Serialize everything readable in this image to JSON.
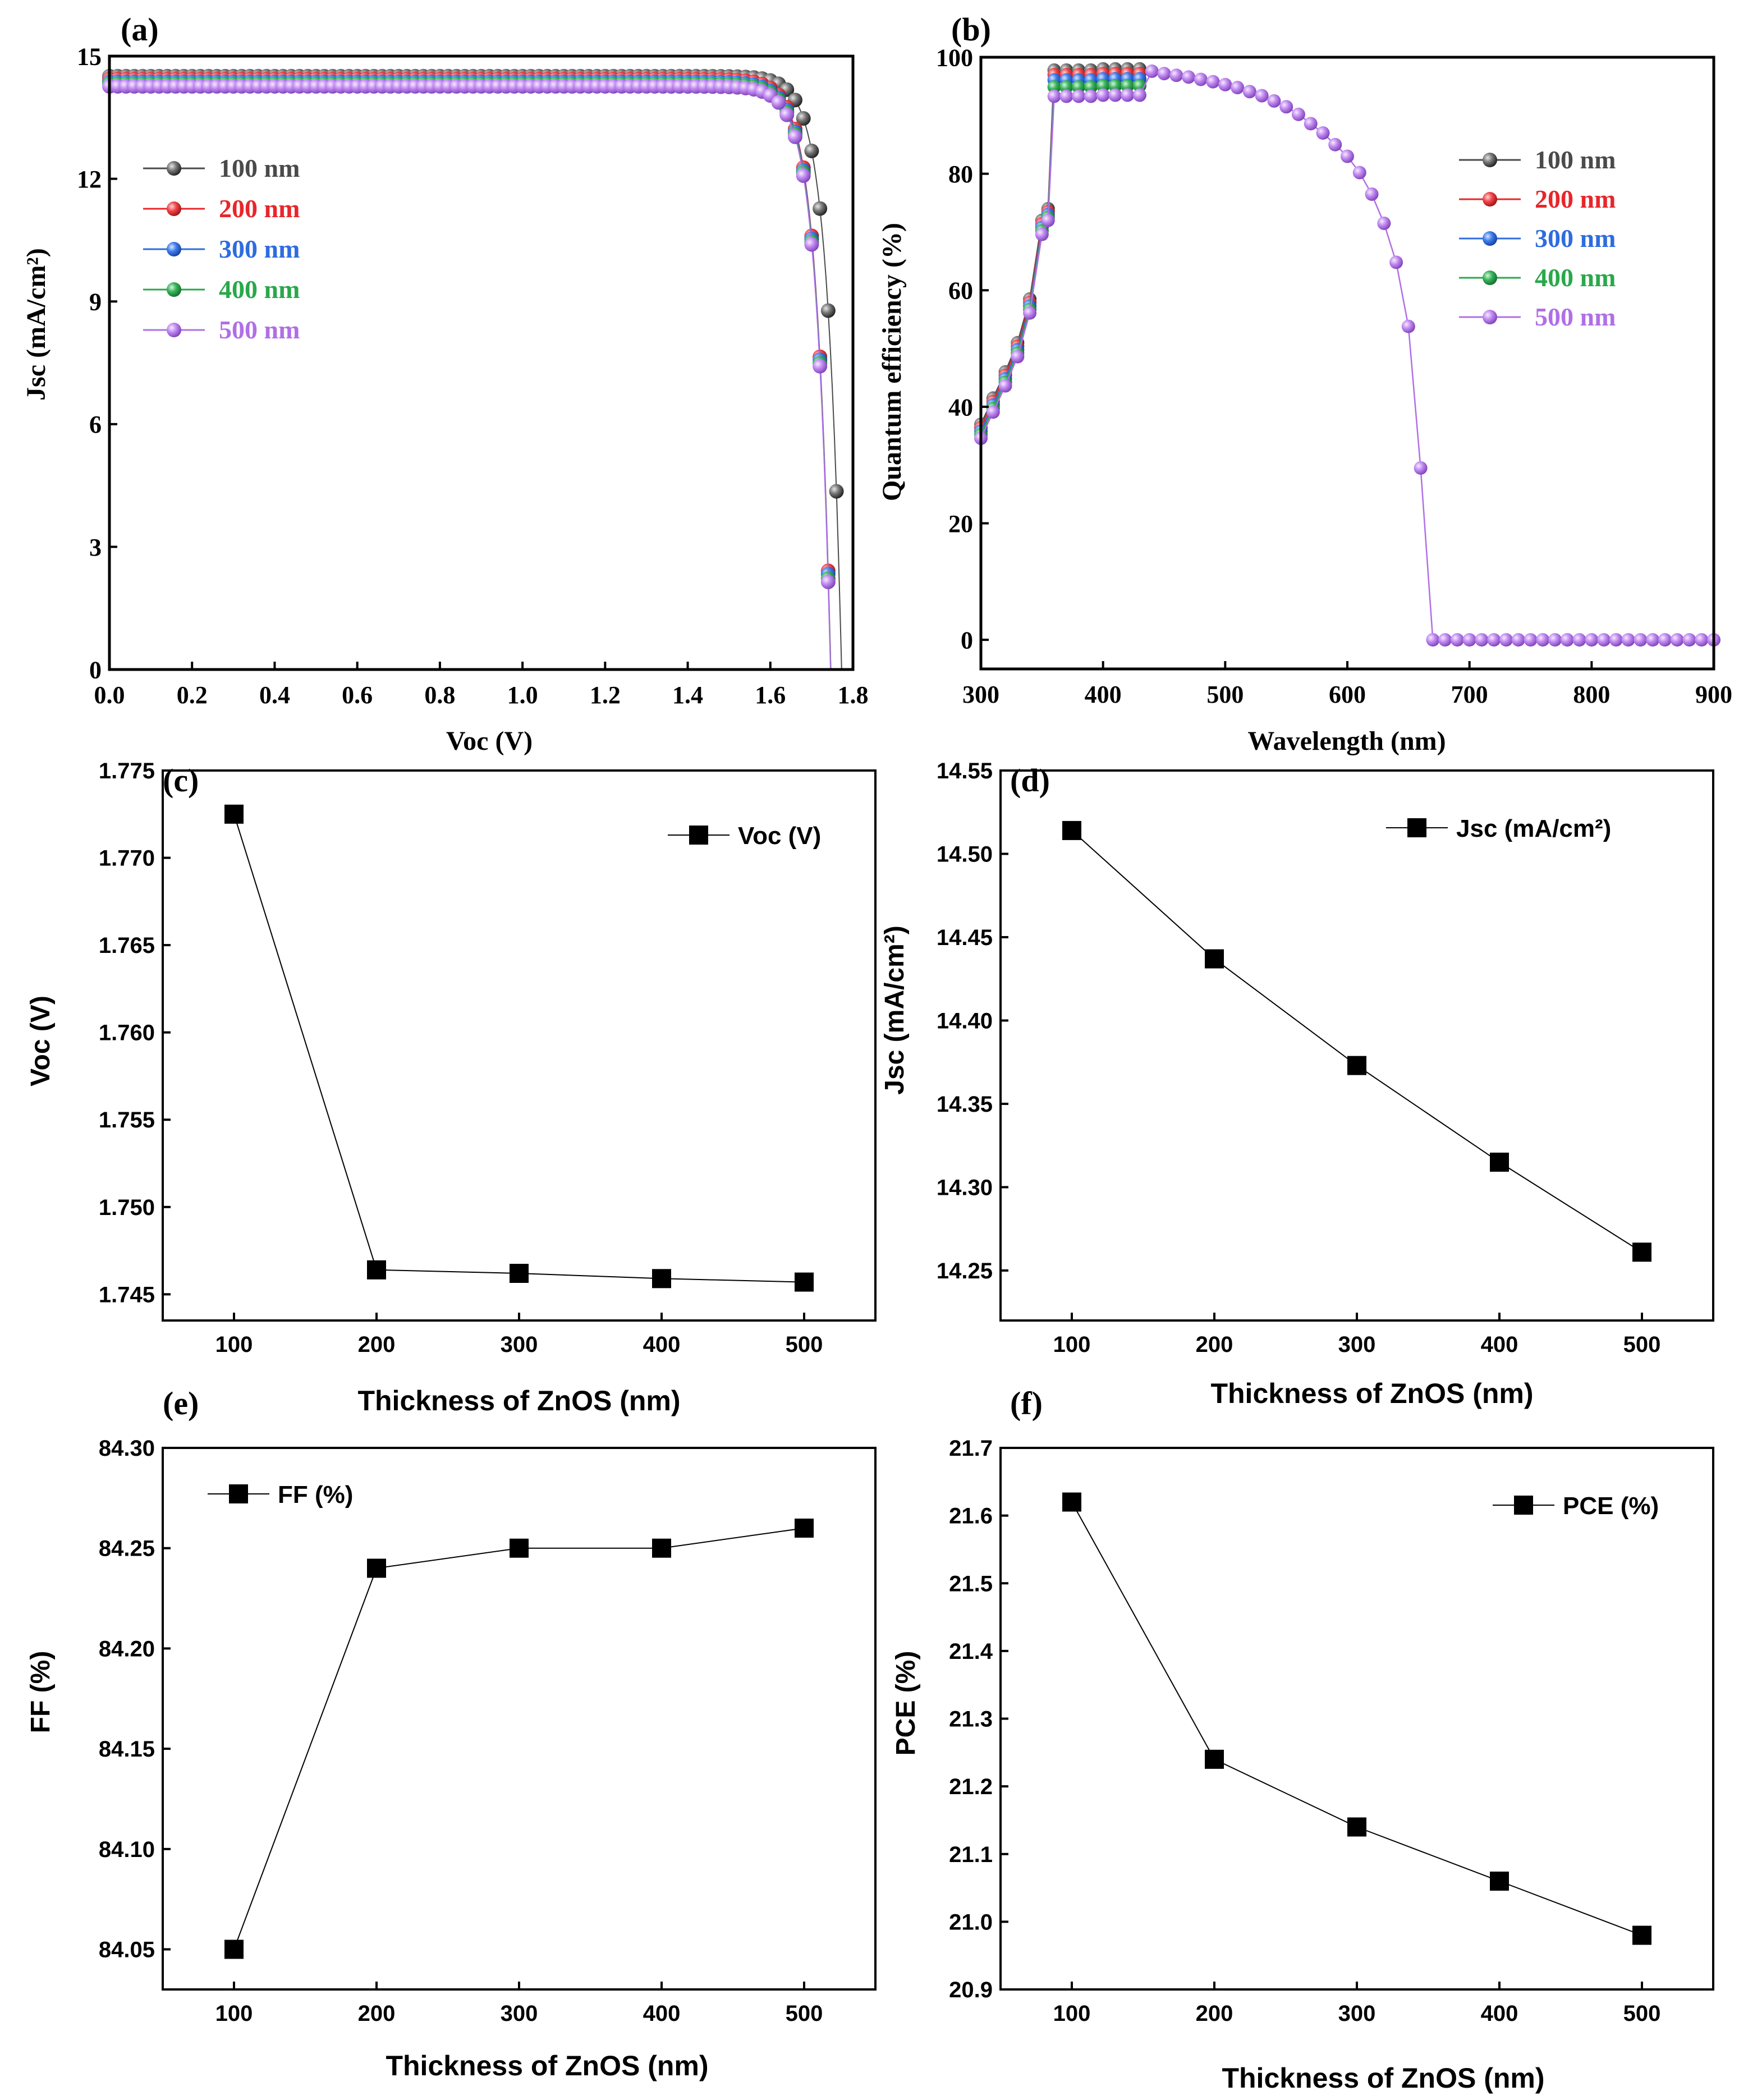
{
  "chart_data": [
    {
      "id": "a",
      "panel_label": "(a)",
      "type": "scatter",
      "title": "",
      "xlabel": "Voc (V)",
      "ylabel": "Jsc (mA/cm²)",
      "xlim": [
        0,
        1.8
      ],
      "ylim": [
        0,
        15
      ],
      "xticks": [
        0.0,
        0.2,
        0.4,
        0.6,
        0.8,
        1.0,
        1.2,
        1.4,
        1.6,
        1.8
      ],
      "xtick_labels": [
        "0.0",
        "0.2",
        "0.4",
        "0.6",
        "0.8",
        "1.0",
        "1.2",
        "1.4",
        "1.6",
        "1.8"
      ],
      "yticks": [
        0,
        3,
        6,
        9,
        12,
        15
      ],
      "ytick_labels": [
        "0",
        "3",
        "6",
        "9",
        "12",
        "15"
      ],
      "legend_position": "left",
      "series": [
        {
          "name": "100 nm",
          "color": "#4a4a4a",
          "jsc": 14.51,
          "voc": 1.7725
        },
        {
          "name": "200 nm",
          "color": "#e8262b",
          "jsc": 14.44,
          "voc": 1.7464
        },
        {
          "name": "300 nm",
          "color": "#2e6cdf",
          "jsc": 14.37,
          "voc": 1.7462
        },
        {
          "name": "400 nm",
          "color": "#2aa84a",
          "jsc": 14.32,
          "voc": 1.7459
        },
        {
          "name": "500 nm",
          "color": "#b06fe6",
          "jsc": 14.26,
          "voc": 1.7457
        }
      ]
    },
    {
      "id": "b",
      "panel_label": "(b)",
      "type": "scatter",
      "title": "",
      "xlabel": "Wavelength (nm)",
      "ylabel": "Quantum efficiency (%)",
      "xlim": [
        300,
        900
      ],
      "ylim": [
        -5,
        100
      ],
      "xticks": [
        300,
        400,
        500,
        600,
        700,
        800,
        900
      ],
      "xtick_labels": [
        "300",
        "400",
        "500",
        "600",
        "700",
        "800",
        "900"
      ],
      "yticks": [
        0,
        20,
        40,
        60,
        80,
        100
      ],
      "ytick_labels": [
        "0",
        "20",
        "40",
        "60",
        "80",
        "100"
      ],
      "legend_position": "right",
      "series": [
        {
          "name": "100 nm",
          "color": "#4a4a4a",
          "plateau": 98.0
        },
        {
          "name": "200 nm",
          "color": "#e8262b",
          "plateau": 97.2
        },
        {
          "name": "300 nm",
          "color": "#2e6cdf",
          "plateau": 96.3
        },
        {
          "name": "400 nm",
          "color": "#2aa84a",
          "plateau": 95.1
        },
        {
          "name": "500 nm",
          "color": "#b06fe6",
          "plateau": 93.5
        }
      ],
      "steps": [
        [
          300,
          37
        ],
        [
          310,
          41.5
        ],
        [
          320,
          46
        ],
        [
          330,
          51
        ],
        [
          340,
          58.5
        ],
        [
          350,
          72
        ]
      ],
      "tail": [
        [
          440,
          97.6
        ],
        [
          450,
          97.2
        ],
        [
          460,
          96.9
        ],
        [
          470,
          96.6
        ],
        [
          480,
          96.2
        ],
        [
          490,
          95.8
        ],
        [
          500,
          95.3
        ],
        [
          510,
          94.8
        ],
        [
          520,
          94.1
        ],
        [
          530,
          93.4
        ],
        [
          540,
          92.5
        ],
        [
          550,
          91.5
        ],
        [
          560,
          90.2
        ],
        [
          570,
          88.6
        ],
        [
          580,
          87.0
        ],
        [
          590,
          85.0
        ],
        [
          600,
          83.0
        ],
        [
          610,
          80.2
        ],
        [
          620,
          76.5
        ],
        [
          630,
          71.5
        ],
        [
          640,
          64.8
        ],
        [
          650,
          53.8
        ],
        [
          660,
          29.5
        ],
        [
          670,
          0
        ],
        [
          680,
          0
        ],
        [
          690,
          0
        ],
        [
          700,
          0
        ],
        [
          710,
          0
        ],
        [
          720,
          0
        ],
        [
          730,
          0
        ],
        [
          740,
          0
        ],
        [
          750,
          0
        ],
        [
          760,
          0
        ],
        [
          770,
          0
        ],
        [
          780,
          0
        ],
        [
          790,
          0
        ],
        [
          800,
          0
        ],
        [
          810,
          0
        ],
        [
          820,
          0
        ],
        [
          830,
          0
        ],
        [
          840,
          0
        ],
        [
          850,
          0
        ],
        [
          860,
          0
        ],
        [
          870,
          0
        ],
        [
          880,
          0
        ],
        [
          890,
          0
        ],
        [
          900,
          0
        ]
      ]
    },
    {
      "id": "c",
      "panel_label": "(c)",
      "type": "line",
      "title": "",
      "xlabel": "Thickness of ZnOS (nm)",
      "ylabel": "Voc (V)",
      "legend": "Voc (V)",
      "legend_position": "top-right",
      "x": [
        100,
        200,
        300,
        400,
        500
      ],
      "values": [
        1.7725,
        1.7464,
        1.7462,
        1.7459,
        1.7457
      ],
      "xlim": [
        50,
        550
      ],
      "ylim": [
        1.7435,
        1.775
      ],
      "xticks": [
        100,
        200,
        300,
        400,
        500
      ],
      "xtick_labels": [
        "100",
        "200",
        "300",
        "400",
        "500"
      ],
      "yticks": [
        1.745,
        1.75,
        1.755,
        1.76,
        1.765,
        1.77,
        1.775
      ],
      "ytick_labels": [
        "1.745",
        "1.750",
        "1.755",
        "1.760",
        "1.765",
        "1.770",
        "1.775"
      ]
    },
    {
      "id": "d",
      "panel_label": "(d)",
      "type": "line",
      "title": "",
      "xlabel": "Thickness of ZnOS (nm)",
      "ylabel": "Jsc (mA/cm²)",
      "legend": "Jsc (mA/cm²)",
      "legend_position": "top-right",
      "x": [
        100,
        200,
        300,
        400,
        500
      ],
      "values": [
        14.514,
        14.437,
        14.373,
        14.315,
        14.261
      ],
      "xlim": [
        50,
        550
      ],
      "ylim": [
        14.22,
        14.55
      ],
      "xticks": [
        100,
        200,
        300,
        400,
        500
      ],
      "xtick_labels": [
        "100",
        "200",
        "300",
        "400",
        "500"
      ],
      "yticks": [
        14.25,
        14.3,
        14.35,
        14.4,
        14.45,
        14.5,
        14.55
      ],
      "ytick_labels": [
        "14.25",
        "14.30",
        "14.35",
        "14.40",
        "14.45",
        "14.50",
        "14.55"
      ]
    },
    {
      "id": "e",
      "panel_label": "(e)",
      "type": "line",
      "title": "",
      "xlabel": "Thickness of ZnOS (nm)",
      "ylabel": "FF (%)",
      "legend": "FF (%)",
      "legend_position": "top-left",
      "x": [
        100,
        200,
        300,
        400,
        500
      ],
      "values": [
        84.05,
        84.24,
        84.25,
        84.25,
        84.26
      ],
      "xlim": [
        50,
        550
      ],
      "ylim": [
        84.03,
        84.3
      ],
      "xticks": [
        100,
        200,
        300,
        400,
        500
      ],
      "xtick_labels": [
        "100",
        "200",
        "300",
        "400",
        "500"
      ],
      "yticks": [
        84.05,
        84.1,
        84.15,
        84.2,
        84.25,
        84.3
      ],
      "ytick_labels": [
        "84.05",
        "84.10",
        "84.15",
        "84.20",
        "84.25",
        "84.30"
      ]
    },
    {
      "id": "f",
      "panel_label": "(f)",
      "type": "line",
      "title": "",
      "xlabel": "Thickness of ZnOS (nm)",
      "ylabel": "PCE (%)",
      "legend": "PCE (%)",
      "legend_position": "top-right",
      "x": [
        100,
        200,
        300,
        400,
        500
      ],
      "values": [
        21.62,
        21.24,
        21.14,
        21.06,
        20.98
      ],
      "xlim": [
        50,
        550
      ],
      "ylim": [
        20.9,
        21.7
      ],
      "xticks": [
        100,
        200,
        300,
        400,
        500
      ],
      "xtick_labels": [
        "100",
        "200",
        "300",
        "400",
        "500"
      ],
      "yticks": [
        20.9,
        21.0,
        21.1,
        21.2,
        21.3,
        21.4,
        21.5,
        21.6,
        21.7
      ],
      "ytick_labels": [
        "20.9",
        "21.0",
        "21.1",
        "21.2",
        "21.3",
        "21.4",
        "21.5",
        "21.6",
        "21.7"
      ]
    }
  ]
}
